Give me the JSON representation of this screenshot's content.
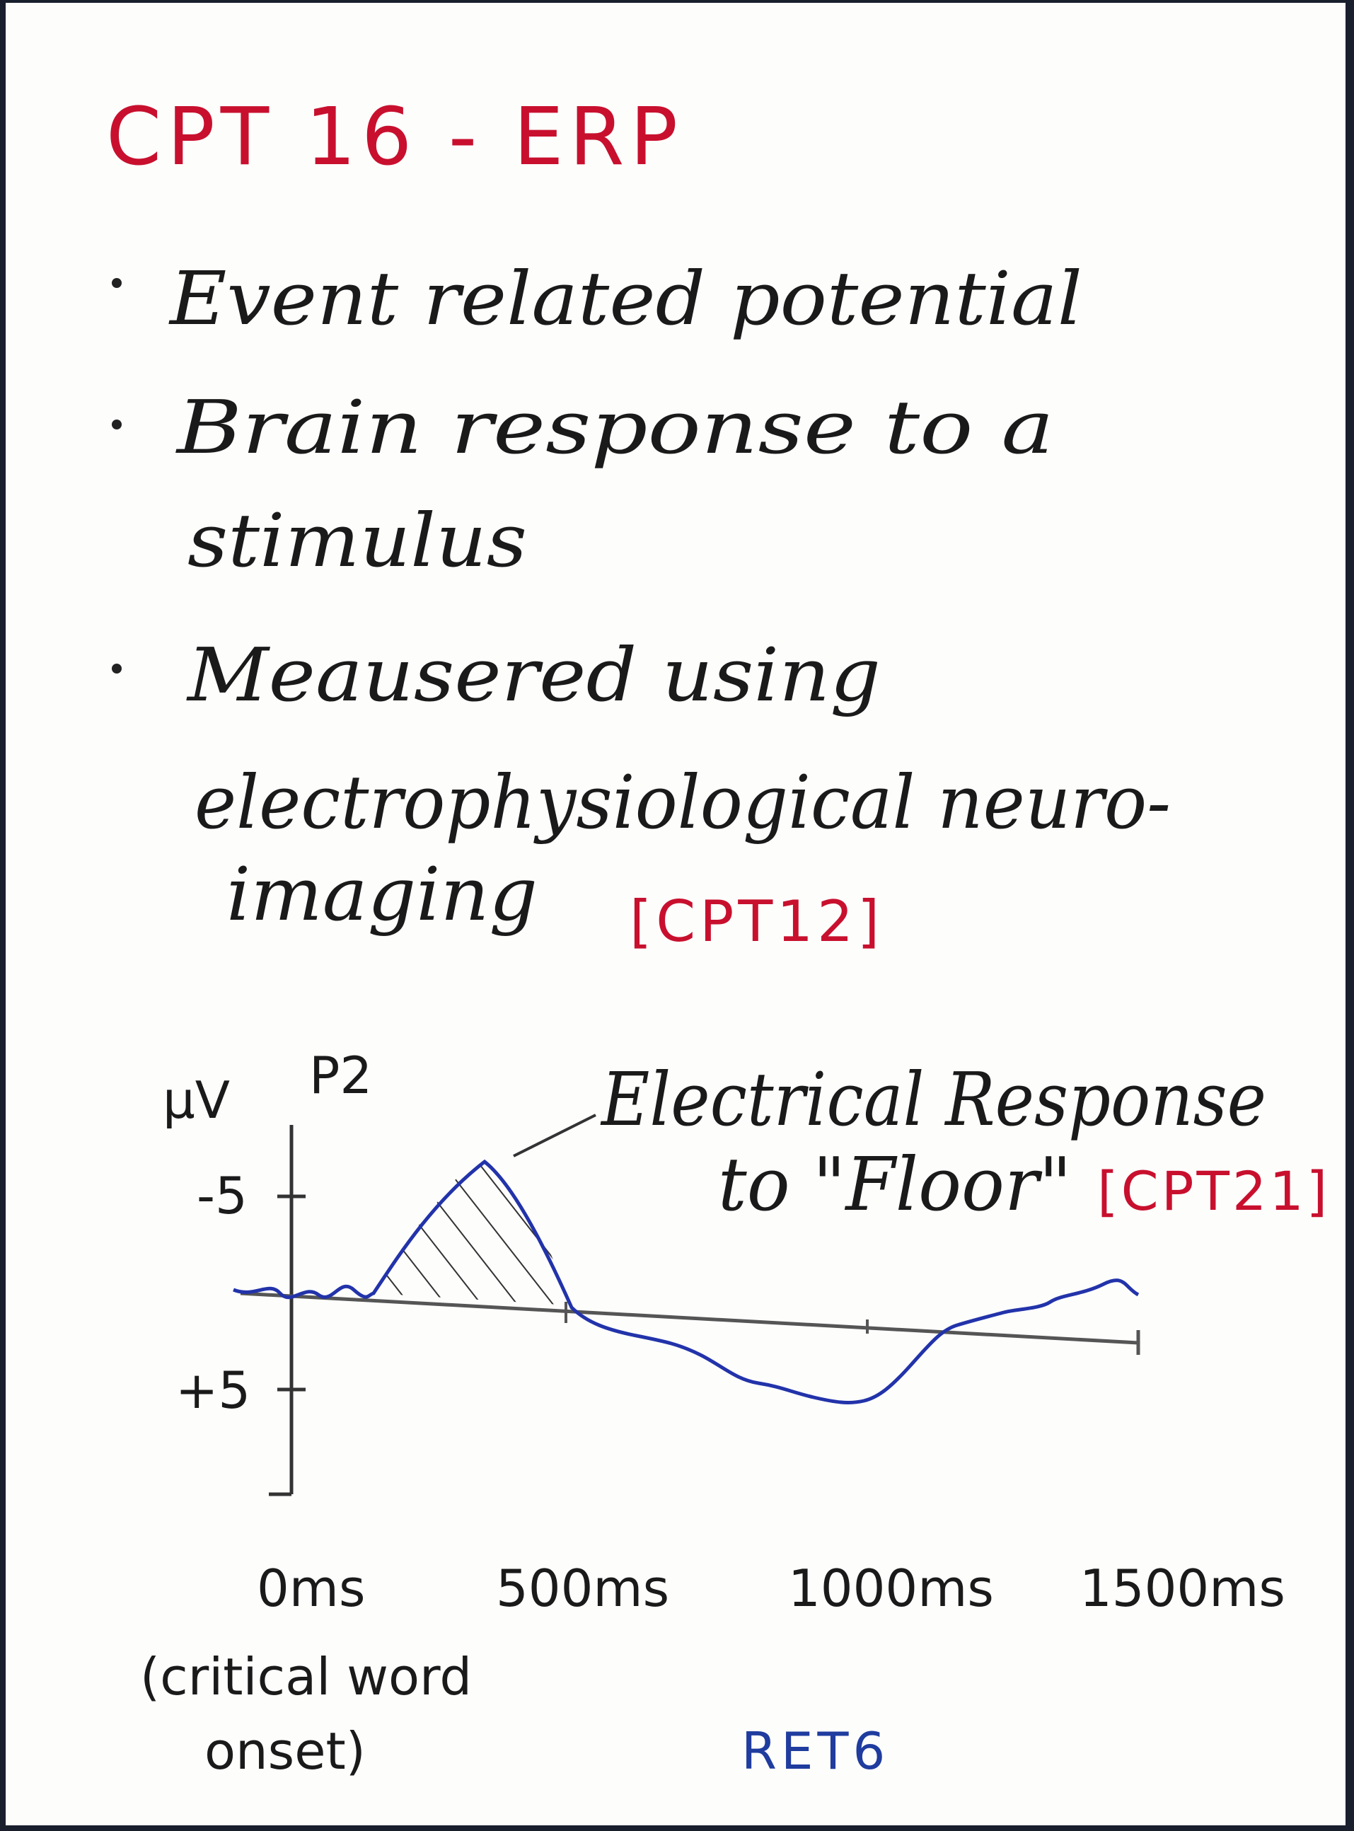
{
  "header": {
    "title": "CPT 16 - ERP"
  },
  "bullets": [
    {
      "lines": [
        "Event related potential"
      ]
    },
    {
      "lines": [
        "Brain response to a",
        "stimulus"
      ]
    },
    {
      "lines": [
        "Meausered using",
        "electrophysiological neuro-",
        "imaging"
      ],
      "ref": "[CPT12]"
    }
  ],
  "graph": {
    "y_unit": "µV",
    "channel": "P2",
    "y_ticks": [
      "-5",
      "+5"
    ],
    "annotation": {
      "lines": [
        "Electrical Response",
        "to \"Floor\""
      ],
      "ref": "[CPT21]"
    },
    "x_labels": [
      "0ms",
      "500ms",
      "1000ms",
      "1500ms"
    ],
    "onset_note": [
      "(critical word",
      "onset)"
    ]
  },
  "footer": "RET6"
}
